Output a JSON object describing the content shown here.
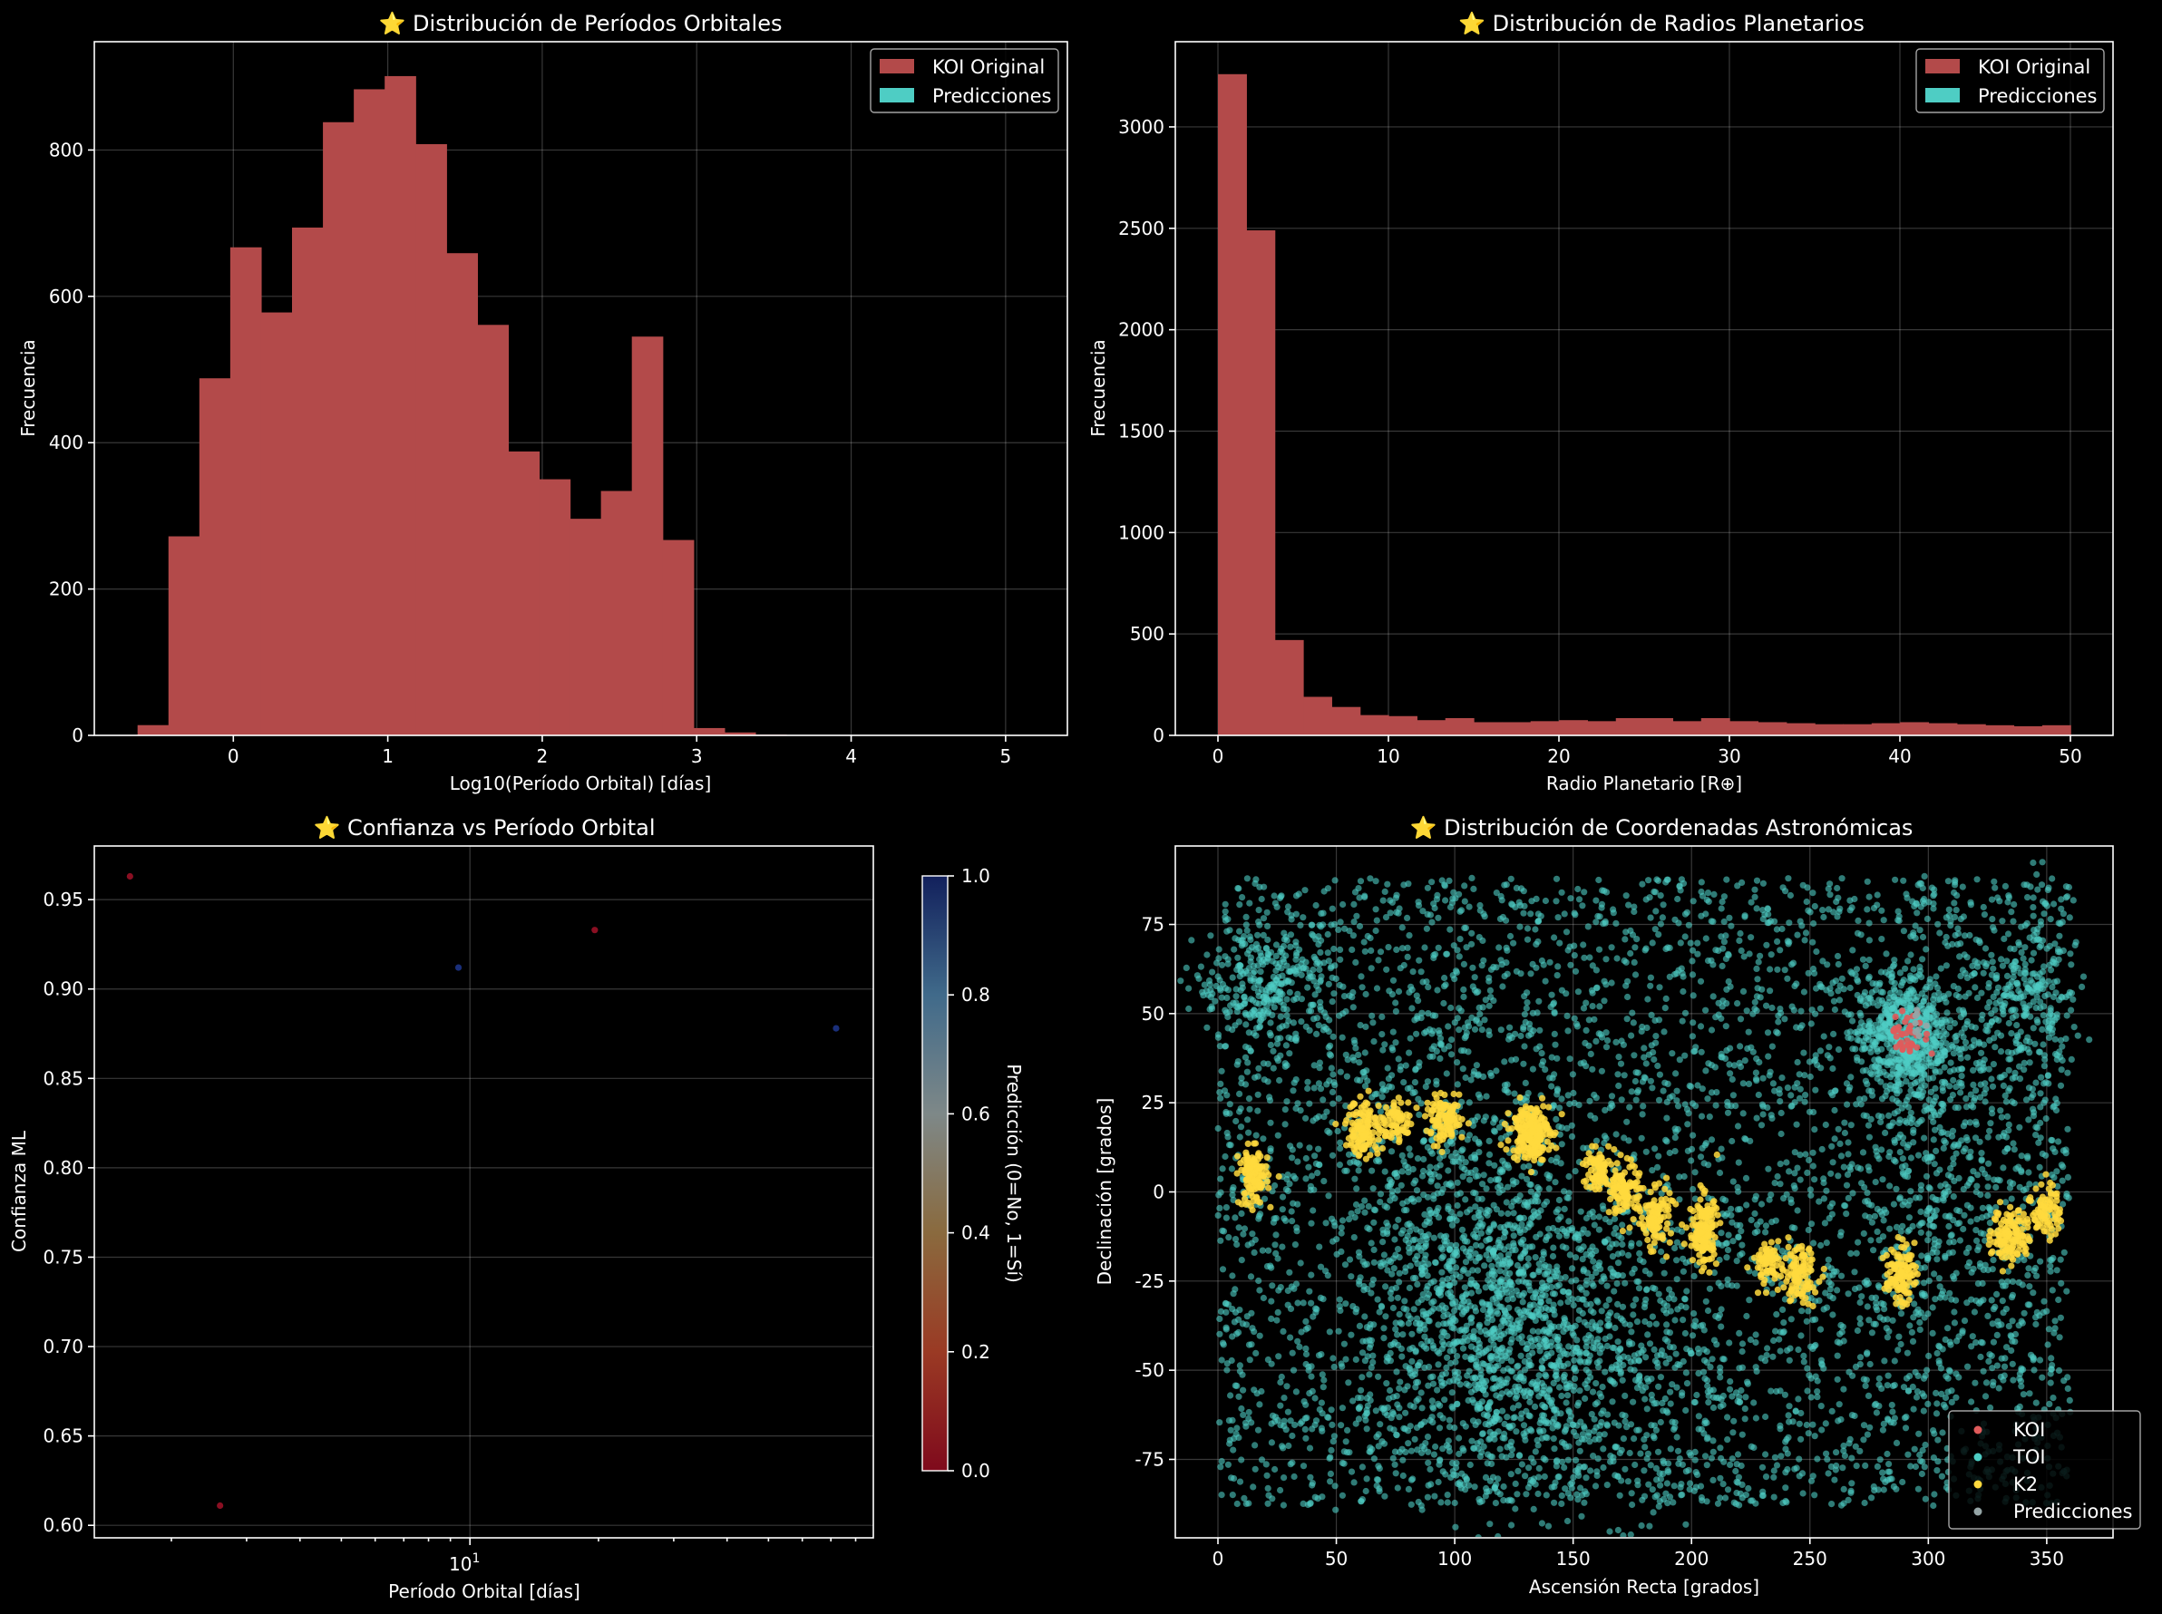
{
  "colors": {
    "background": "#000000",
    "koi": "#e05b5b",
    "koi_bar": "#b34a4a",
    "toi": "#4ecdc4",
    "k2": "#ffd93d",
    "predicciones": "#95a5a6"
  },
  "chart_data": [
    {
      "type": "bar",
      "title": "⭐ Distribución de Períodos Orbitales",
      "xlabel": "Log10(Período Orbital) [días]",
      "ylabel": "Frecuencia",
      "xlim": [
        -0.9,
        5.4
      ],
      "ylim": [
        0,
        948
      ],
      "xticks": [
        0,
        1,
        2,
        3,
        4,
        5
      ],
      "yticks": [
        0,
        200,
        400,
        600,
        800
      ],
      "grid": true,
      "legend_position": "top-right",
      "bin_start": -0.62,
      "bin_width": 0.2,
      "series": [
        {
          "name": "KOI Original",
          "color": "#b34a4a",
          "values": [
            14,
            272,
            488,
            667,
            578,
            694,
            838,
            883,
            901,
            808,
            659,
            561,
            388,
            350,
            296,
            334,
            545,
            267,
            10,
            4,
            1
          ]
        },
        {
          "name": "Predicciones",
          "color": "#4ecdc4",
          "values": []
        }
      ]
    },
    {
      "type": "bar",
      "title": "⭐ Distribución de Radios Planetarios",
      "xlabel": "Radio Planetario [R⊕]",
      "ylabel": "Frecuencia",
      "xlim": [
        -2.5,
        52.5
      ],
      "ylim": [
        0,
        3420
      ],
      "xticks": [
        0,
        10,
        20,
        30,
        40,
        50
      ],
      "yticks": [
        0,
        500,
        1000,
        1500,
        2000,
        2500,
        3000
      ],
      "grid": true,
      "legend_position": "top-right",
      "bin_start": 0,
      "bin_width": 1.667,
      "series": [
        {
          "name": "KOI Original",
          "color": "#b34a4a",
          "values": [
            3260,
            2490,
            470,
            190,
            140,
            100,
            95,
            75,
            85,
            65,
            65,
            70,
            75,
            70,
            85,
            85,
            70,
            85,
            70,
            65,
            60,
            55,
            55,
            60,
            65,
            60,
            55,
            50,
            45,
            50
          ]
        },
        {
          "name": "Predicciones",
          "color": "#4ecdc4",
          "values": []
        }
      ]
    },
    {
      "type": "scatter",
      "title": "⭐ Confianza vs Período Orbital",
      "xlabel": "Período Orbital [días]",
      "ylabel": "Confianza ML",
      "x_scale": "log",
      "xlim": [
        1.32,
        88
      ],
      "ylim": [
        0.593,
        0.98
      ],
      "xtick_major": [
        10
      ],
      "xtick_major_labels": [
        "10",
        "1"
      ],
      "yticks": [
        0.6,
        0.65,
        0.7,
        0.75,
        0.8,
        0.85,
        0.9,
        0.95
      ],
      "grid": true,
      "colormap": "cividis-like (0 = red, 1 = dark blue)",
      "colorbar_label": "Predicción (0=No, 1=Sí)",
      "colorbar_ticks": [
        0.0,
        0.2,
        0.4,
        0.6,
        0.8,
        1.0
      ],
      "points": [
        {
          "x": 1.6,
          "y": 0.963,
          "prediction": 0
        },
        {
          "x": 2.6,
          "y": 0.611,
          "prediction": 0
        },
        {
          "x": 9.4,
          "y": 0.912,
          "prediction": 1
        },
        {
          "x": 19.6,
          "y": 0.933,
          "prediction": 0
        },
        {
          "x": 72,
          "y": 0.878,
          "prediction": 1
        }
      ]
    },
    {
      "type": "scatter",
      "title": "⭐ Distribución de Coordenadas Astronómicas",
      "xlabel": "Ascensión Recta [grados]",
      "ylabel": "Declinación [grados]",
      "xlim": [
        -18,
        378
      ],
      "ylim": [
        -97,
        97
      ],
      "xticks": [
        0,
        50,
        100,
        150,
        200,
        250,
        300,
        350
      ],
      "yticks": [
        -75,
        -50,
        -25,
        0,
        25,
        50,
        75
      ],
      "grid": true,
      "legend_position": "bottom-right",
      "series": [
        {
          "name": "KOI",
          "color": "#e05b5b",
          "clusters": [
            {
              "x": 292,
              "y": 44,
              "sx": 4,
              "sy": 3,
              "n": 40
            }
          ]
        },
        {
          "name": "TOI",
          "color": "#4ecdc4",
          "uniform": {
            "x": [
              0,
              360
            ],
            "y": [
              -88,
              88
            ],
            "n": 4200
          },
          "clusters": [
            {
              "x": 290,
              "y": 44,
              "sx": 10,
              "sy": 8,
              "n": 500
            },
            {
              "x": 110,
              "y": -30,
              "sx": 25,
              "sy": 30,
              "n": 900
            },
            {
              "x": 150,
              "y": -50,
              "sx": 30,
              "sy": 20,
              "n": 500
            },
            {
              "x": 300,
              "y": 10,
              "sx": 20,
              "sy": 35,
              "n": 400
            },
            {
              "x": 20,
              "y": 58,
              "sx": 15,
              "sy": 8,
              "n": 250
            },
            {
              "x": 345,
              "y": 55,
              "sx": 10,
              "sy": 15,
              "n": 200
            }
          ]
        },
        {
          "name": "K2",
          "color": "#ffd93d",
          "clusters": [
            {
              "x": 15,
              "y": 4,
              "sx": 3,
              "sy": 4,
              "n": 120
            },
            {
              "x": 62,
              "y": 18,
              "sx": 4,
              "sy": 4,
              "n": 130
            },
            {
              "x": 76,
              "y": 20,
              "sx": 3,
              "sy": 3,
              "n": 60
            },
            {
              "x": 96,
              "y": 20,
              "sx": 4,
              "sy": 3,
              "n": 110
            },
            {
              "x": 132,
              "y": 17,
              "sx": 4,
              "sy": 4,
              "n": 220
            },
            {
              "x": 160,
              "y": 6,
              "sx": 3,
              "sy": 3,
              "n": 80
            },
            {
              "x": 172,
              "y": 0,
              "sx": 3,
              "sy": 4,
              "n": 110
            },
            {
              "x": 185,
              "y": -7,
              "sx": 3,
              "sy": 4,
              "n": 100
            },
            {
              "x": 205,
              "y": -11,
              "sx": 3,
              "sy": 5,
              "n": 150
            },
            {
              "x": 232,
              "y": -20,
              "sx": 3,
              "sy": 3,
              "n": 70
            },
            {
              "x": 245,
              "y": -23,
              "sx": 4,
              "sy": 4,
              "n": 110
            },
            {
              "x": 288,
              "y": -23,
              "sx": 3,
              "sy": 4,
              "n": 110
            },
            {
              "x": 335,
              "y": -12,
              "sx": 4,
              "sy": 4,
              "n": 130
            },
            {
              "x": 350,
              "y": -5,
              "sx": 3,
              "sy": 4,
              "n": 80
            }
          ]
        },
        {
          "name": "Predicciones",
          "color": "#95a5a6",
          "clusters": [
            {
              "x": 295,
              "y": 47,
              "sx": 3,
              "sy": 2,
              "n": 8
            }
          ]
        }
      ]
    }
  ]
}
